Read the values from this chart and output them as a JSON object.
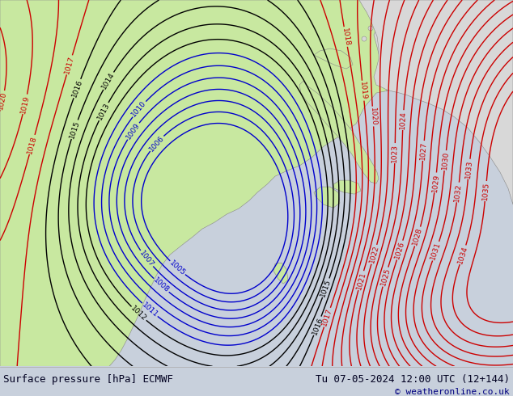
{
  "title_left": "Surface pressure [hPa] ECMWF",
  "title_right": "Tu 07-05-2024 12:00 UTC (12+144)",
  "copyright": "© weatheronline.co.uk",
  "sea_color": "#c8d0dc",
  "land_green": "#c8e8a0",
  "land_grey": "#d8d8d8",
  "contour_blue": "#0000cc",
  "contour_black": "#000000",
  "contour_red": "#cc0000",
  "contour_grey": "#888888",
  "footer_bg": "#d8e0f0",
  "footer_text": "#000020",
  "copyright_color": "#000080",
  "blue_levels": [
    1005,
    1006,
    1007,
    1008,
    1009,
    1010,
    1011
  ],
  "black_levels": [
    1012,
    1013,
    1014,
    1015,
    1016
  ],
  "red_levels": [
    1017,
    1018,
    1019,
    1020,
    1021,
    1022,
    1023,
    1024,
    1025,
    1026,
    1027,
    1028,
    1029,
    1030,
    1031,
    1032,
    1033,
    1034,
    1035
  ]
}
